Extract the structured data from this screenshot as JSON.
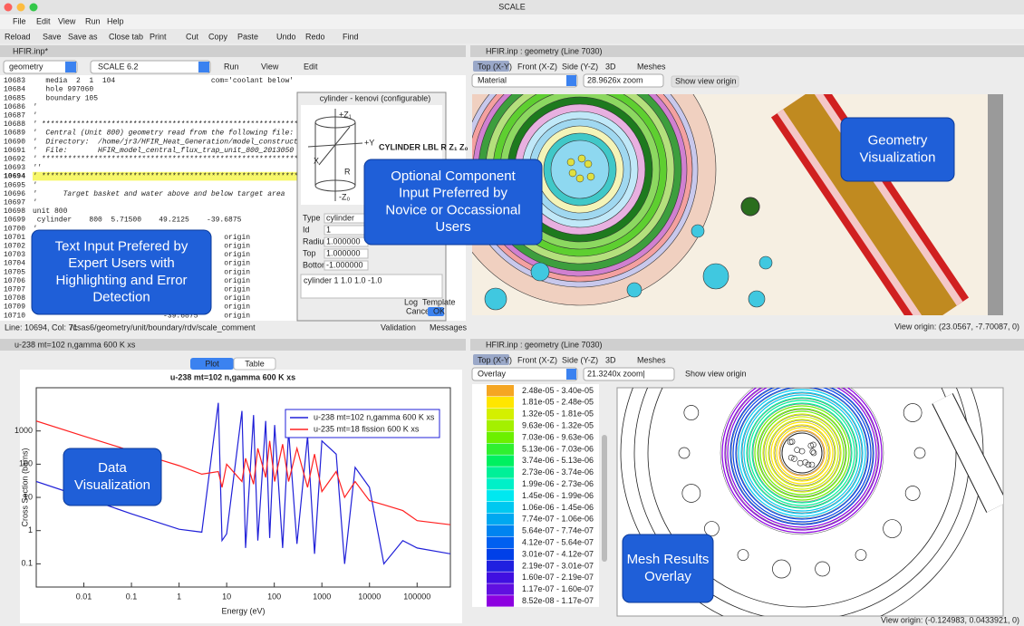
{
  "window": {
    "title": "SCALE"
  },
  "menu": [
    "File",
    "Edit",
    "View",
    "Run",
    "Help"
  ],
  "toolbar": [
    "Reload",
    "Save",
    "Save as",
    "Close tab",
    "Print",
    "Cut",
    "Copy",
    "Paste",
    "Undo",
    "Redo",
    "Find"
  ],
  "editor": {
    "tab": "HFIR.inp*",
    "selector": "geometry",
    "version": "SCALE 6.2",
    "menus": [
      "Run",
      "View",
      "Edit"
    ],
    "lines": [
      {
        "num": 10683,
        "text": "   media  2  1  104                      com='coolant below'"
      },
      {
        "num": 10684,
        "text": "   hole 997060"
      },
      {
        "num": 10685,
        "text": "   boundary 105"
      },
      {
        "num": 10686,
        "text": "'"
      },
      {
        "num": 10687,
        "text": "'"
      },
      {
        "num": 10688,
        "text": "' ************************************************************"
      },
      {
        "num": 10689,
        "text": "'  Central (Unit 800) geometry read from the following file:"
      },
      {
        "num": 10690,
        "text": "'  Directory:  /home/jr3/HFIR_Heat_Generation/model_construct"
      },
      {
        "num": 10691,
        "text": "'  File:       HFIR_model_central_flux_trap_unit_800_2013050"
      },
      {
        "num": 10692,
        "text": "' ************************************************************"
      },
      {
        "num": 10693,
        "text": "''"
      },
      {
        "num": 10694,
        "text": "' ************************************************************"
      },
      {
        "num": 10695,
        "text": "'"
      },
      {
        "num": 10696,
        "text": "'      Target basket and water above and below target area"
      },
      {
        "num": 10697,
        "text": "'"
      },
      {
        "num": 10698,
        "text": "unit 800"
      },
      {
        "num": 10699,
        "text": " cylinder    800  5.71500    49.2125    -39.6875"
      },
      {
        "num": 10700,
        "text": "'"
      },
      {
        "num": 10701,
        "text": "                              -39.6875      origin"
      },
      {
        "num": 10702,
        "text": "                              -39.6875      origin"
      },
      {
        "num": 10703,
        "text": "                              -39.6875      origin"
      },
      {
        "num": 10704,
        "text": "                              -39.6875      origin"
      },
      {
        "num": 10705,
        "text": "                              -39.6875      origin"
      },
      {
        "num": 10706,
        "text": "                              -39.6875      origin"
      },
      {
        "num": 10707,
        "text": "                              -39.6875      origin"
      },
      {
        "num": 10708,
        "text": "                              -39.6875      origin"
      },
      {
        "num": 10709,
        "text": "                              -39.6875      origin"
      },
      {
        "num": 10710,
        "text": "                              -39.6875      origin"
      }
    ],
    "status": {
      "position": "Line: 10694, Col: 71",
      "path": "/csas6/geometry/unit/boundary/rdv/scale_comment",
      "buttons": [
        "Validation",
        "Messages"
      ]
    }
  },
  "dialog": {
    "title": "cylinder - kenovi (configurable)",
    "diagram_labels": [
      "+Z₁",
      "+Y",
      "X",
      "R",
      "-Z₀"
    ],
    "signature": "CYLINDER LBL R Z₁ Z₀",
    "fields": [
      [
        "Type",
        "cylinder"
      ],
      [
        "Id",
        "1"
      ],
      [
        "Radius",
        "1.000000"
      ],
      [
        "Top",
        "1.000000"
      ],
      [
        "Bottom",
        "-1.000000"
      ]
    ],
    "preview": "cylinder 1 1.0 1.0 -1.0",
    "buttons": [
      "Log",
      "Template",
      "Cancel",
      "OK"
    ]
  },
  "geometry_view": {
    "tab": "HFIR.inp : geometry (Line 7030)",
    "tabs": [
      "Top (X-Y)",
      "Front (X-Z)",
      "Side (Y-Z)",
      "3D",
      "Meshes"
    ],
    "mode": "Material",
    "zoom": "28.9626x zoom",
    "button": "Show view origin",
    "origin": "View origin: (23.0567, -7.70087, 0)"
  },
  "plot_panel": {
    "tab": "u-238 mt=102 n,gamma 600 K xs",
    "tabs": [
      "Plot",
      "Table"
    ],
    "chart": {
      "type": "line",
      "title": "u-238 mt=102 n,gamma 600 K xs",
      "x_label": "Energy (eV)",
      "y_label": "Cross Section (barns)",
      "log_x": true,
      "log_y": true,
      "legend": "top-right",
      "x": [
        0.001,
        0.01,
        0.1,
        1,
        3,
        6.67,
        8,
        10,
        20.9,
        25,
        36.7,
        45,
        66,
        80,
        102,
        150,
        200,
        300,
        500,
        700,
        1000,
        2000,
        3000,
        5000,
        10000,
        20000,
        50000,
        100000,
        500000
      ],
      "series": [
        {
          "name": "u-238 mt=102 n,gamma 600 K xs",
          "color": "#2020d8",
          "values": [
            30,
            10,
            3.2,
            1.1,
            0.9,
            7000,
            0.5,
            0.8,
            4000,
            0.3,
            3000,
            0.5,
            2000,
            0.6,
            1500,
            0.3,
            1000,
            0.4,
            700,
            0.2,
            500,
            200,
            0.1,
            80,
            20,
            0.1,
            0.5,
            0.3,
            0.2
          ]
        },
        {
          "name": "u-235 mt=18 fission 600 K xs",
          "color": "#ff2020",
          "values": [
            2000,
            700,
            250,
            90,
            50,
            60,
            20,
            100,
            30,
            150,
            25,
            300,
            40,
            500,
            30,
            400,
            30,
            300,
            20,
            200,
            15,
            60,
            10,
            30,
            8,
            6,
            4,
            2,
            1.5
          ]
        }
      ],
      "xlim": [
        0.001,
        500000
      ],
      "xticks": [
        0.01,
        0.1,
        1,
        10,
        100,
        1000,
        10000,
        100000
      ],
      "ylim": [
        0.02,
        20000
      ],
      "yticks": [
        0.1,
        1,
        10,
        100,
        1000
      ]
    }
  },
  "mesh_view": {
    "tab": "HFIR.inp : geometry (Line 7030)",
    "tabs": [
      "Top (X-Y)",
      "Front (X-Z)",
      "Side (Y-Z)",
      "3D",
      "Meshes"
    ],
    "mode": "Overlay",
    "zoom": "21.3240x zoom|",
    "button": "Show view origin",
    "legend": [
      {
        "range": "2.48e-05 - 3.40e-05",
        "color": "#f5a623"
      },
      {
        "range": "1.81e-05 - 2.48e-05",
        "color": "#ffe600"
      },
      {
        "range": "1.32e-05 - 1.81e-05",
        "color": "#d4f000"
      },
      {
        "range": "9.63e-06 - 1.32e-05",
        "color": "#a4f000"
      },
      {
        "range": "7.03e-06 - 9.63e-06",
        "color": "#6cf000"
      },
      {
        "range": "5.13e-06 - 7.03e-06",
        "color": "#30f030"
      },
      {
        "range": "3.74e-06 - 5.13e-06",
        "color": "#00f060"
      },
      {
        "range": "2.73e-06 - 3.74e-06",
        "color": "#00f098"
      },
      {
        "range": "1.99e-06 - 2.73e-06",
        "color": "#00f0c8"
      },
      {
        "range": "1.45e-06 - 1.99e-06",
        "color": "#00e8f0"
      },
      {
        "range": "1.06e-06 - 1.45e-06",
        "color": "#00c8f0"
      },
      {
        "range": "7.74e-07 - 1.06e-06",
        "color": "#00a8f0"
      },
      {
        "range": "5.64e-07 - 7.74e-07",
        "color": "#0084f0"
      },
      {
        "range": "4.12e-07 - 5.64e-07",
        "color": "#0060f0"
      },
      {
        "range": "3.01e-07 - 4.12e-07",
        "color": "#0040e8"
      },
      {
        "range": "2.19e-07 - 3.01e-07",
        "color": "#2020e0"
      },
      {
        "range": "1.60e-07 - 2.19e-07",
        "color": "#4010e0"
      },
      {
        "range": "1.17e-07 - 1.60e-07",
        "color": "#6010e0"
      },
      {
        "range": "8.52e-08 - 1.17e-07",
        "color": "#8c00e0"
      }
    ],
    "origin": "View origin: (-0.124983, 0.0433921, 0)"
  },
  "callouts": {
    "component": [
      "Optional Component",
      "Input Preferred by",
      "Novice or Occassional",
      "Users"
    ],
    "text_input": [
      "Text Input Prefered by",
      "Expert Users with",
      "Highlighting and Error",
      "Detection"
    ],
    "geometry": [
      "Geometry",
      "Visualization"
    ],
    "data": [
      "Data",
      "Visualization"
    ],
    "mesh": [
      "Mesh Results",
      "Overlay"
    ]
  }
}
